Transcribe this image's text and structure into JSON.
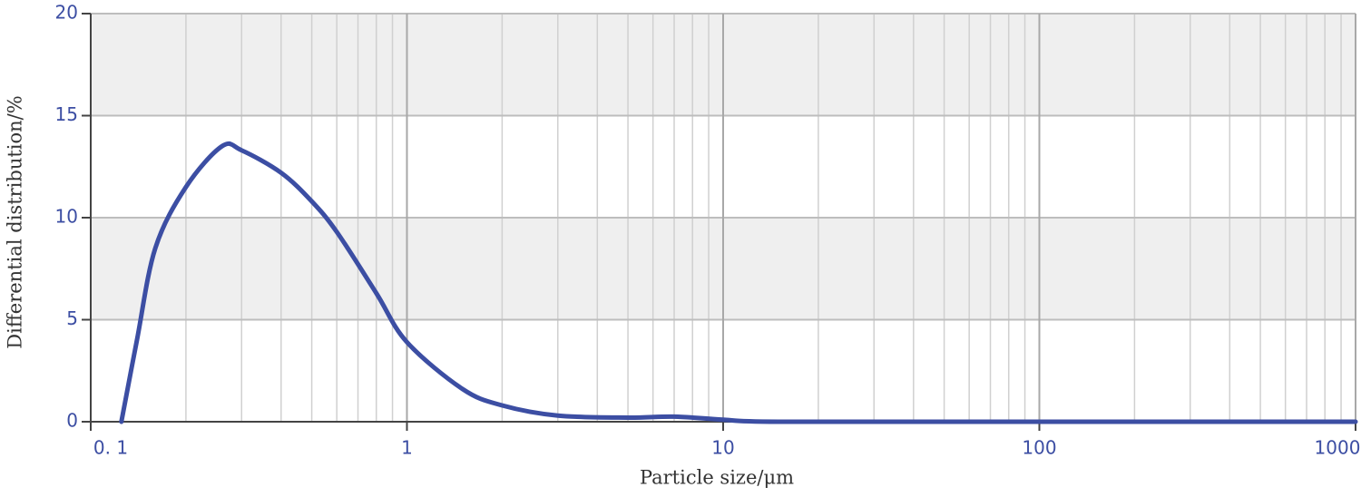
{
  "chart_data": {
    "type": "line",
    "x_label": "Particle size/μm",
    "y_label": "Differential distribution/%",
    "x": [
      0.125,
      0.14,
      0.16,
      0.2,
      0.26,
      0.3,
      0.4,
      0.5,
      0.6,
      0.8,
      1,
      1.5,
      2,
      3,
      5,
      7,
      10,
      15,
      100,
      1000
    ],
    "series": [
      {
        "color": "#3c4ea3",
        "values": [
          0,
          4,
          8.5,
          11.5,
          13.5,
          13.3,
          12.2,
          10.8,
          9.3,
          6.3,
          3.9,
          1.6,
          0.8,
          0.3,
          0.2,
          0.25,
          0.1,
          0,
          0,
          0
        ]
      }
    ],
    "x_log": true,
    "xlim": [
      0.1,
      1000
    ],
    "xticks": [
      {
        "value": 0.1,
        "label": "0. 1"
      },
      1,
      10,
      100,
      1000
    ],
    "ylim": [
      0,
      20
    ],
    "yticks": [
      0,
      5,
      10,
      15,
      20
    ],
    "grid": true,
    "banded_background": true
  }
}
